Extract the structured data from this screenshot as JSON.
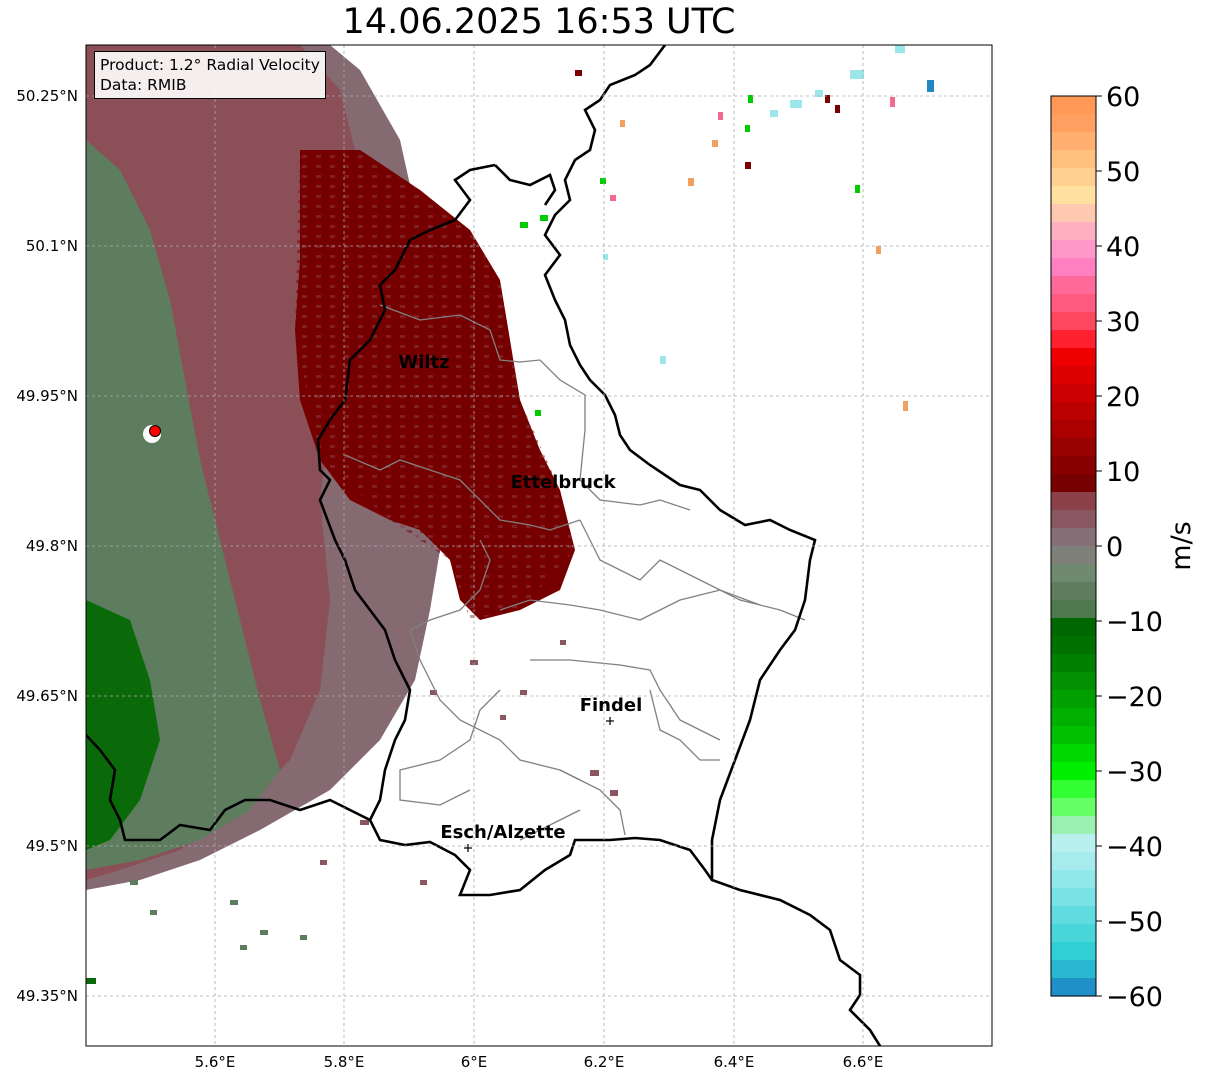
{
  "title": "14.06.2025 16:53 UTC",
  "info": {
    "product": "Product: 1.2° Radial Velocity",
    "data": "Data: RMIB"
  },
  "map": {
    "lon_ticks": [
      "5.6°E",
      "5.8°E",
      "6°E",
      "6.2°E",
      "6.4°E",
      "6.6°E"
    ],
    "lat_ticks": [
      "50.25°N",
      "50.1°N",
      "49.95°N",
      "49.8°N",
      "49.65°N",
      "49.5°N",
      "49.35°N"
    ],
    "cities": [
      {
        "name": "Wiltz"
      },
      {
        "name": "Ettelbruck"
      },
      {
        "name": "Findel"
      },
      {
        "name": "Esch/Alzette"
      }
    ],
    "radar_marker_color": "#ff0000",
    "gridlines": true
  },
  "colorbar": {
    "unit": "m/s",
    "ticks": [
      "60",
      "50",
      "40",
      "30",
      "20",
      "10",
      "0",
      "−10",
      "−20",
      "−30",
      "−40",
      "−50",
      "−60"
    ],
    "range": [
      -60,
      60
    ]
  }
}
